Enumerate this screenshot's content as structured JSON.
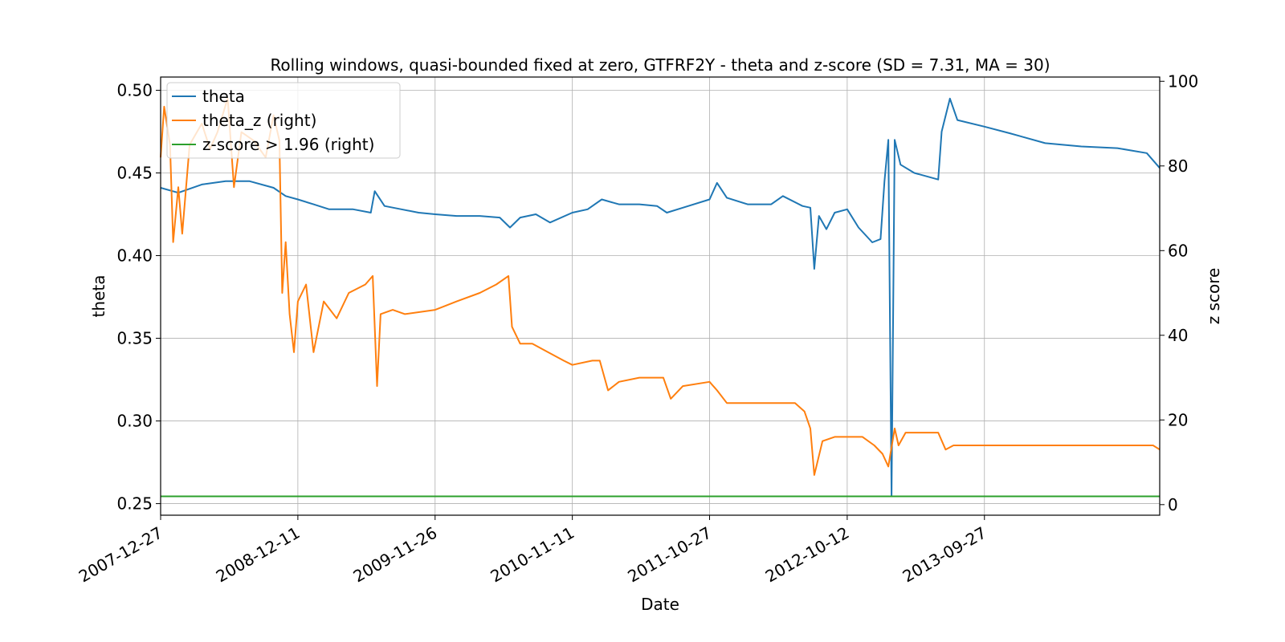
{
  "chart_data": {
    "type": "line",
    "title": "Rolling windows, quasi-bounded fixed at zero, GTFRF2Y - theta and z-score (SD = 7.31, MA = 30)",
    "xlabel": "Date",
    "ylabel_left": "theta",
    "ylabel_right": "z score",
    "x_range": [
      "2007-12-27",
      "2014-12-18"
    ],
    "ylim_left": [
      0.243,
      0.508
    ],
    "ylim_right": [
      -2.5,
      101
    ],
    "x_ticks": [
      "2007-12-27",
      "2008-12-11",
      "2009-11-26",
      "2010-11-11",
      "2011-10-27",
      "2012-10-12",
      "2013-09-27"
    ],
    "y_ticks_left": [
      "0.25",
      "0.30",
      "0.35",
      "0.40",
      "0.45",
      "0.50"
    ],
    "y_ticks_right": [
      "0",
      "20",
      "40",
      "60",
      "80",
      "100"
    ],
    "grid": true,
    "legend_position": "top-left",
    "series": [
      {
        "name": "theta",
        "axis": "left",
        "color": "#1f77b4",
        "points": [
          [
            "2007-12-27",
            0.441
          ],
          [
            "2008-02-10",
            0.438
          ],
          [
            "2008-04-10",
            0.443
          ],
          [
            "2008-06-10",
            0.445
          ],
          [
            "2008-08-10",
            0.445
          ],
          [
            "2008-10-10",
            0.441
          ],
          [
            "2008-11-10",
            0.436
          ],
          [
            "2008-12-11",
            0.434
          ],
          [
            "2009-01-20",
            0.431
          ],
          [
            "2009-03-01",
            0.428
          ],
          [
            "2009-05-01",
            0.428
          ],
          [
            "2009-06-15",
            0.426
          ],
          [
            "2009-06-25",
            0.439
          ],
          [
            "2009-07-20",
            0.43
          ],
          [
            "2009-09-01",
            0.428
          ],
          [
            "2009-10-15",
            0.426
          ],
          [
            "2009-11-26",
            0.425
          ],
          [
            "2010-01-20",
            0.424
          ],
          [
            "2010-03-20",
            0.424
          ],
          [
            "2010-05-10",
            0.423
          ],
          [
            "2010-06-05",
            0.417
          ],
          [
            "2010-07-01",
            0.423
          ],
          [
            "2010-08-10",
            0.425
          ],
          [
            "2010-09-15",
            0.42
          ],
          [
            "2010-11-11",
            0.426
          ],
          [
            "2010-12-20",
            0.428
          ],
          [
            "2011-01-25",
            0.434
          ],
          [
            "2011-03-10",
            0.431
          ],
          [
            "2011-05-01",
            0.431
          ],
          [
            "2011-06-15",
            0.43
          ],
          [
            "2011-07-10",
            0.426
          ],
          [
            "2011-08-20",
            0.429
          ],
          [
            "2011-10-27",
            0.434
          ],
          [
            "2011-11-15",
            0.444
          ],
          [
            "2011-12-10",
            0.435
          ],
          [
            "2012-02-01",
            0.431
          ],
          [
            "2012-04-01",
            0.431
          ],
          [
            "2012-05-01",
            0.436
          ],
          [
            "2012-06-20",
            0.43
          ],
          [
            "2012-07-10",
            0.429
          ],
          [
            "2012-07-20",
            0.392
          ],
          [
            "2012-08-01",
            0.424
          ],
          [
            "2012-08-20",
            0.416
          ],
          [
            "2012-09-10",
            0.426
          ],
          [
            "2012-10-12",
            0.428
          ],
          [
            "2012-11-10",
            0.417
          ],
          [
            "2012-12-15",
            0.408
          ],
          [
            "2013-01-05",
            0.41
          ],
          [
            "2013-01-15",
            0.445
          ],
          [
            "2013-01-25",
            0.47
          ],
          [
            "2013-02-02",
            0.255
          ],
          [
            "2013-02-10",
            0.47
          ],
          [
            "2013-02-25",
            0.455
          ],
          [
            "2013-04-01",
            0.45
          ],
          [
            "2013-06-01",
            0.446
          ],
          [
            "2013-06-10",
            0.475
          ],
          [
            "2013-07-01",
            0.495
          ],
          [
            "2013-07-20",
            0.482
          ],
          [
            "2013-09-27",
            0.478
          ],
          [
            "2013-12-01",
            0.474
          ],
          [
            "2014-03-01",
            0.468
          ],
          [
            "2014-06-01",
            0.466
          ],
          [
            "2014-09-01",
            0.465
          ],
          [
            "2014-11-15",
            0.462
          ],
          [
            "2014-12-18",
            0.453
          ]
        ]
      },
      {
        "name": "theta_z (right)",
        "axis": "right",
        "color": "#ff7f0e",
        "points": [
          [
            "2007-12-27",
            82
          ],
          [
            "2008-01-05",
            94
          ],
          [
            "2008-01-20",
            85
          ],
          [
            "2008-01-28",
            62
          ],
          [
            "2008-02-10",
            75
          ],
          [
            "2008-02-20",
            64
          ],
          [
            "2008-03-10",
            85
          ],
          [
            "2008-04-10",
            90
          ],
          [
            "2008-05-01",
            84
          ],
          [
            "2008-05-20",
            88
          ],
          [
            "2008-06-15",
            96
          ],
          [
            "2008-07-01",
            75
          ],
          [
            "2008-07-20",
            88
          ],
          [
            "2008-08-20",
            86
          ],
          [
            "2008-09-20",
            82
          ],
          [
            "2008-10-10",
            92
          ],
          [
            "2008-10-25",
            86
          ],
          [
            "2008-11-01",
            50
          ],
          [
            "2008-11-10",
            62
          ],
          [
            "2008-11-20",
            45
          ],
          [
            "2008-12-01",
            36
          ],
          [
            "2008-12-11",
            48
          ],
          [
            "2009-01-01",
            52
          ],
          [
            "2009-01-20",
            36
          ],
          [
            "2009-02-15",
            48
          ],
          [
            "2009-03-20",
            44
          ],
          [
            "2009-04-20",
            50
          ],
          [
            "2009-06-01",
            52
          ],
          [
            "2009-06-20",
            54
          ],
          [
            "2009-07-01",
            28
          ],
          [
            "2009-07-10",
            45
          ],
          [
            "2009-08-10",
            46
          ],
          [
            "2009-09-10",
            45
          ],
          [
            "2009-11-26",
            46
          ],
          [
            "2010-01-20",
            48
          ],
          [
            "2010-03-20",
            50
          ],
          [
            "2010-05-01",
            52
          ],
          [
            "2010-06-01",
            54
          ],
          [
            "2010-06-10",
            42
          ],
          [
            "2010-07-01",
            38
          ],
          [
            "2010-08-01",
            38
          ],
          [
            "2010-09-10",
            36
          ],
          [
            "2010-10-20",
            34
          ],
          [
            "2010-11-11",
            33
          ],
          [
            "2011-01-01",
            34
          ],
          [
            "2011-01-20",
            34
          ],
          [
            "2011-02-10",
            27
          ],
          [
            "2011-03-10",
            29
          ],
          [
            "2011-05-01",
            30
          ],
          [
            "2011-07-01",
            30
          ],
          [
            "2011-07-20",
            25
          ],
          [
            "2011-08-20",
            28
          ],
          [
            "2011-10-27",
            29
          ],
          [
            "2011-11-15",
            27
          ],
          [
            "2011-12-10",
            24
          ],
          [
            "2012-02-01",
            24
          ],
          [
            "2012-04-01",
            24
          ],
          [
            "2012-06-01",
            24
          ],
          [
            "2012-06-25",
            22
          ],
          [
            "2012-07-10",
            18
          ],
          [
            "2012-07-20",
            7
          ],
          [
            "2012-08-10",
            15
          ],
          [
            "2012-09-10",
            16
          ],
          [
            "2012-10-12",
            16
          ],
          [
            "2012-11-20",
            16
          ],
          [
            "2012-12-20",
            14
          ],
          [
            "2013-01-10",
            12
          ],
          [
            "2013-01-25",
            9
          ],
          [
            "2013-02-10",
            18
          ],
          [
            "2013-02-20",
            14
          ],
          [
            "2013-03-10",
            17
          ],
          [
            "2013-06-01",
            17
          ],
          [
            "2013-06-20",
            13
          ],
          [
            "2013-07-10",
            14
          ],
          [
            "2013-09-27",
            14
          ],
          [
            "2014-06-01",
            14
          ],
          [
            "2014-12-01",
            14
          ],
          [
            "2014-12-18",
            13
          ]
        ]
      },
      {
        "name": "z-score > 1.96 (right)",
        "axis": "right",
        "color": "#2ca02c",
        "points": [
          [
            "2007-12-27",
            1.96
          ],
          [
            "2014-12-18",
            1.96
          ]
        ]
      }
    ]
  }
}
